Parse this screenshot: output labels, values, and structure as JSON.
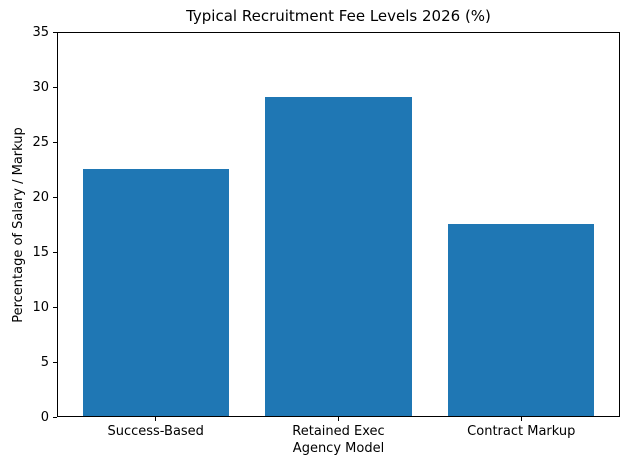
{
  "figure": {
    "background_color": "#ffffff",
    "axis_color": "#000000"
  },
  "chart_data": {
    "type": "bar",
    "title": "Typical Recruitment Fee Levels 2026 (%)",
    "xlabel": "Agency Model",
    "ylabel": "Percentage of Salary / Markup",
    "categories": [
      "Success-Based",
      "Retained Exec",
      "Contract Markup"
    ],
    "values": [
      22.5,
      29,
      17.5
    ],
    "ylim": [
      0,
      35
    ],
    "yticks": [
      0,
      5,
      10,
      15,
      20,
      25,
      30,
      35
    ],
    "bar_color": "#1f77b4",
    "bar_width_fraction": 0.8,
    "grid": false,
    "legend_position": "none"
  }
}
